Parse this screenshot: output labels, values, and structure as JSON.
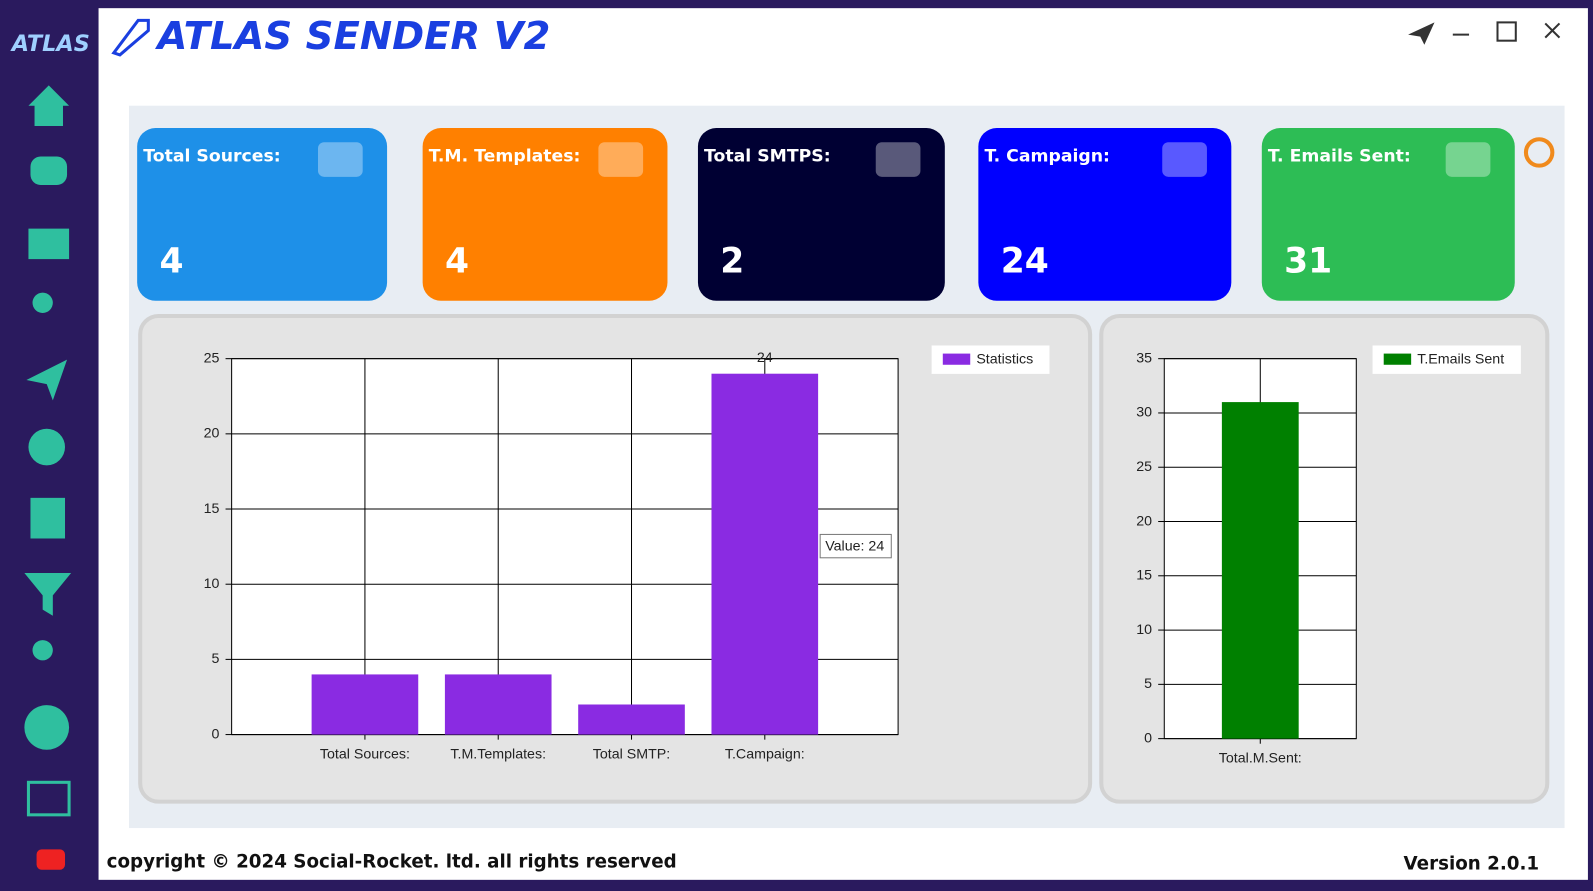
{
  "app": {
    "logo": "ATLAS",
    "title": "ATLAS SENDER V2"
  },
  "cards": [
    {
      "label": "Total Sources:",
      "value": 4,
      "color": "#1e90e8"
    },
    {
      "label": "T.M. Templates:",
      "value": 4,
      "color": "#ff8000"
    },
    {
      "label": "Total SMTPS:",
      "value": 2,
      "color": "#000033"
    },
    {
      "label": "T. Campaign:",
      "value": 24,
      "color": "#0000ff"
    },
    {
      "label": "T. Emails Sent:",
      "value": 31,
      "color": "#2dbd55"
    }
  ],
  "chart_data": [
    {
      "type": "bar",
      "categories": [
        "Total Sources:",
        "T.M.Templates:",
        "Total SMTP:",
        "T.Campaign:"
      ],
      "series": [
        {
          "name": "Statistics",
          "color": "#8a2be2",
          "values": [
            4,
            4,
            2,
            24
          ],
          "value_labels": [
            null,
            null,
            null,
            "24"
          ]
        }
      ],
      "ylim": [
        0,
        25
      ],
      "yticks": [
        0,
        5,
        10,
        15,
        20,
        25
      ],
      "grid": true,
      "tooltip": "Value: 24"
    },
    {
      "type": "bar",
      "categories": [
        "Total.M.Sent:"
      ],
      "series": [
        {
          "name": "T.Emails Sent",
          "color": "#008000",
          "values": [
            31
          ]
        }
      ],
      "ylim": [
        0,
        35
      ],
      "yticks": [
        0,
        5,
        10,
        15,
        20,
        25,
        30,
        35
      ],
      "grid": true
    }
  ],
  "footer": {
    "copyright": "copyright © 2024 Social-Rocket. ltd. all rights reserved",
    "version": "Version 2.0.1"
  }
}
